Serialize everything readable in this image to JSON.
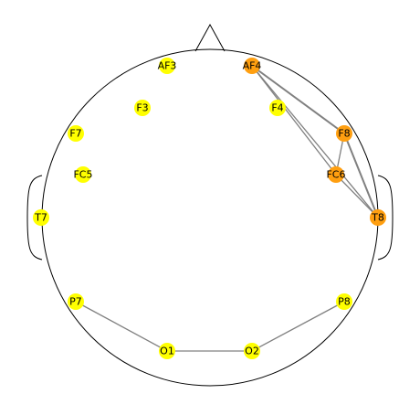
{
  "colors": {
    "outline": "#000000",
    "connection": "#808080",
    "node_default": "#ffff00",
    "node_active": "#ff9f10",
    "background": "#ffffff"
  },
  "electrodes": [
    {
      "id": "AF3",
      "label": "AF3",
      "active": false
    },
    {
      "id": "AF4",
      "label": "AF4",
      "active": true
    },
    {
      "id": "F3",
      "label": "F3",
      "active": false
    },
    {
      "id": "F4",
      "label": "F4",
      "active": false
    },
    {
      "id": "F7",
      "label": "F7",
      "active": false
    },
    {
      "id": "F8",
      "label": "F8",
      "active": true
    },
    {
      "id": "FC5",
      "label": "FC5",
      "active": false
    },
    {
      "id": "FC6",
      "label": "FC6",
      "active": true
    },
    {
      "id": "T7",
      "label": "T7",
      "active": false
    },
    {
      "id": "T8",
      "label": "T8",
      "active": true
    },
    {
      "id": "P7",
      "label": "P7",
      "active": false
    },
    {
      "id": "P8",
      "label": "P8",
      "active": false
    },
    {
      "id": "O1",
      "label": "O1",
      "active": false
    },
    {
      "id": "O2",
      "label": "O2",
      "active": false
    }
  ],
  "connections": [
    {
      "from": "AF4",
      "to": "F8",
      "weight": 2
    },
    {
      "from": "AF4",
      "to": "FC6",
      "weight": 1
    },
    {
      "from": "AF4",
      "to": "T8",
      "weight": 1
    },
    {
      "from": "F8",
      "to": "FC6",
      "weight": 1
    },
    {
      "from": "F8",
      "to": "T8",
      "weight": 2
    },
    {
      "from": "FC6",
      "to": "T8",
      "weight": 1
    },
    {
      "from": "P7",
      "to": "O1",
      "weight": 1
    },
    {
      "from": "O1",
      "to": "O2",
      "weight": 1
    },
    {
      "from": "O2",
      "to": "P8",
      "weight": 1
    }
  ]
}
